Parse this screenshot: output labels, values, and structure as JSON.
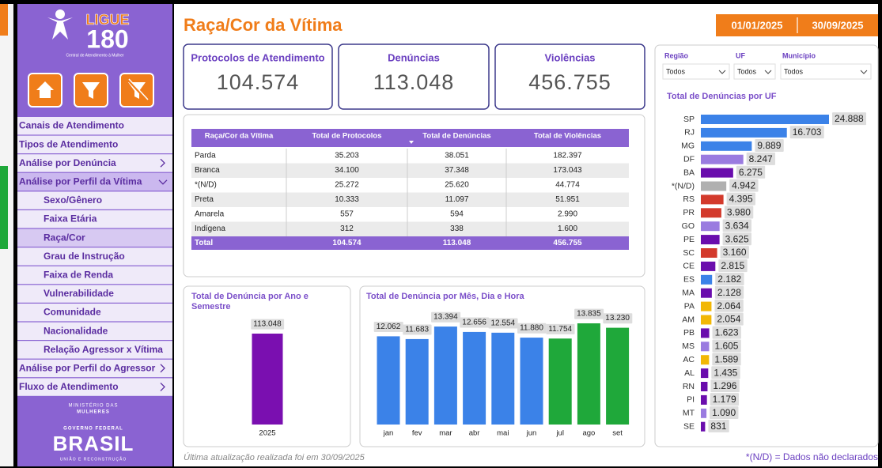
{
  "sidebar": {
    "logo_top": "LIGUE",
    "logo_number": "180",
    "logo_sub": "Central de Atendimento à Mulher",
    "menu": [
      "Canais de Atendimento",
      "Tipos de Atendimento",
      "Análise por Denúncia",
      "Análise por Perfil da Vítima",
      "Sexo/Gênero",
      "Faixa Etária",
      "Raça/Cor",
      "Grau de Instrução",
      "Faixa de Renda",
      "Vulnerabilidade",
      "Comunidade",
      "Nacionalidade",
      "Relação Agressor x Vítima",
      "Análise por Perfil do Agressor",
      "Fluxo de Atendimento"
    ],
    "footer": {
      "ministry_1": "MINISTÉRIO DAS",
      "ministry_2": "MULHERES",
      "gov": "GOVERNO FEDERAL",
      "brasil": "BRASIL",
      "motto": "UNIÃO E RECONSTRUÇÃO"
    }
  },
  "header": {
    "title": "Raça/Cor da Vítima",
    "date_start": "01/01/2025",
    "date_end": "30/09/2025"
  },
  "kpis": [
    {
      "label": "Protocolos de Atendimento",
      "value": "104.574"
    },
    {
      "label": "Denúncias",
      "value": "113.048"
    },
    {
      "label": "Violências",
      "value": "456.755"
    }
  ],
  "table": {
    "columns": [
      "Raça/Cor da Vítima",
      "Total de Protocolos",
      "Total de Denúncias",
      "Total de Violências"
    ],
    "rows": [
      [
        "Parda",
        "35.203",
        "38.051",
        "182.397"
      ],
      [
        "Branca",
        "34.100",
        "37.348",
        "173.043"
      ],
      [
        "*(N/D)",
        "25.272",
        "25.620",
        "44.774"
      ],
      [
        "Preta",
        "10.333",
        "11.097",
        "51.951"
      ],
      [
        "Amarela",
        "557",
        "594",
        "2.990"
      ],
      [
        "Indígena",
        "312",
        "338",
        "1.600"
      ]
    ],
    "total": [
      "Total",
      "104.574",
      "113.048",
      "456.755"
    ]
  },
  "filters": [
    {
      "label": "Região",
      "value": "Todos"
    },
    {
      "label": "UF",
      "value": "Todos"
    },
    {
      "label": "Município",
      "value": "Todos"
    }
  ],
  "chart_uf": {
    "type": "bar",
    "title": "Total de Denúncias por UF",
    "categories": [
      "SP",
      "RJ",
      "MG",
      "DF",
      "BA",
      "*(N/D)",
      "RS",
      "PR",
      "GO",
      "PE",
      "SC",
      "CE",
      "ES",
      "MA",
      "PA",
      "AM",
      "PB",
      "MS",
      "AC",
      "AL",
      "RN",
      "PI",
      "MT",
      "SE"
    ],
    "values": [
      24888,
      16703,
      9889,
      8247,
      6275,
      4942,
      4395,
      3980,
      3634,
      3625,
      3160,
      2815,
      2182,
      2128,
      2064,
      2054,
      1623,
      1605,
      1589,
      1435,
      1296,
      1179,
      1090,
      831
    ],
    "value_labels": [
      "24.888",
      "16.703",
      "9.889",
      "8.247",
      "6.275",
      "4.942",
      "4.395",
      "3.980",
      "3.634",
      "3.625",
      "3.160",
      "2.815",
      "2.182",
      "2.128",
      "2.064",
      "2.054",
      "1.623",
      "1.605",
      "1.589",
      "1.435",
      "1.296",
      "1.179",
      "1.090",
      "831"
    ],
    "colors": [
      "#3b82e8",
      "#3b82e8",
      "#3b82e8",
      "#9a7be0",
      "#6a0dad",
      "#b0b0b0",
      "#d33a2c",
      "#d33a2c",
      "#9a7be0",
      "#6a0dad",
      "#d33a2c",
      "#6a0dad",
      "#3b82e8",
      "#6a0dad",
      "#f2b705",
      "#f2b705",
      "#6a0dad",
      "#9a7be0",
      "#f2b705",
      "#6a0dad",
      "#6a0dad",
      "#6a0dad",
      "#9a7be0",
      "#6a0dad"
    ]
  },
  "chart_year": {
    "type": "bar",
    "title": "Total de Denúncia por Ano e Semestre",
    "categories": [
      "2025"
    ],
    "values": [
      113048
    ],
    "value_labels": [
      "113.048"
    ],
    "colors": [
      "#7a0fb0"
    ]
  },
  "chart_month": {
    "type": "bar",
    "title": "Total de Denúncia por Mês, Dia e Hora",
    "categories": [
      "jan",
      "fev",
      "mar",
      "abr",
      "mai",
      "jun",
      "jul",
      "ago",
      "set"
    ],
    "values": [
      12062,
      11683,
      13394,
      12656,
      12554,
      11880,
      11754,
      13835,
      13230
    ],
    "value_labels": [
      "12.062",
      "11.683",
      "13.394",
      "12.656",
      "12.554",
      "11.880",
      "11.754",
      "13.835",
      "13.230"
    ],
    "colors": [
      "#3b82e8",
      "#3b82e8",
      "#3b82e8",
      "#3b82e8",
      "#3b82e8",
      "#3b82e8",
      "#1fa83a",
      "#1fa83a",
      "#1fa83a"
    ]
  },
  "footer": {
    "update": "Última atualização realizada foi em 30/09/2025",
    "note": "*(N/D) = Dados não declarados"
  }
}
